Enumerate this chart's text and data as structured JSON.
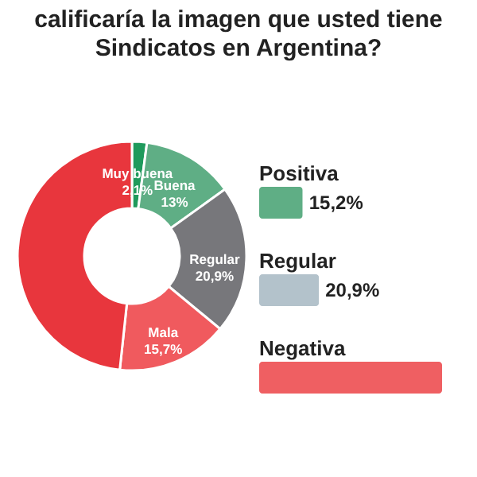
{
  "chart_data": [
    {
      "type": "donut",
      "title": "calificaría la imagen que usted tiene",
      "subtitle": "Sindicatos en Argentina?",
      "categories": [
        "Muy buena",
        "Buena",
        "Regular",
        "Mala",
        null
      ],
      "values": [
        2.1,
        13,
        20.9,
        15.7,
        48.3
      ],
      "colors": [
        "#1f9a5c",
        "#5fae85",
        "#77777b",
        "#f05a5e",
        "#e8363d"
      ],
      "value_labels": [
        "2,1%",
        "13%",
        "20,9%",
        "15,7%",
        null
      ]
    },
    {
      "type": "bar",
      "orientation": "horizontal",
      "categories": [
        "Positiva",
        "Regular",
        "Negativa"
      ],
      "values": [
        15.2,
        20.9,
        63.9
      ],
      "colors": [
        "#5fae85",
        "#b3c2cb",
        "#ef5f62"
      ],
      "value_labels": [
        "15,2%",
        "20,9%",
        null
      ]
    }
  ]
}
